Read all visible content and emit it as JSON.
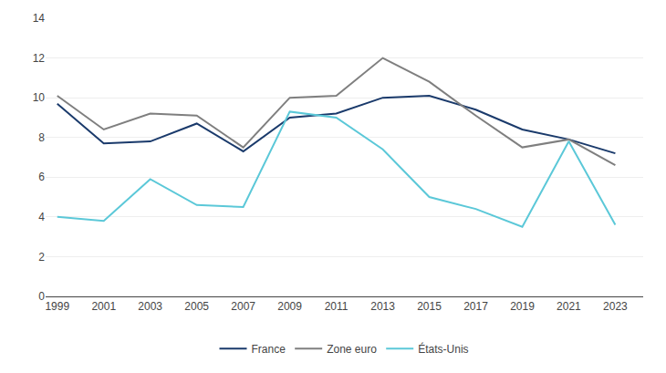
{
  "chart_data": {
    "type": "line",
    "x": [
      1999,
      2001,
      2003,
      2005,
      2007,
      2009,
      2011,
      2013,
      2015,
      2017,
      2019,
      2021,
      2023
    ],
    "series": [
      {
        "name": "France",
        "color": "#1a3a6b",
        "values": [
          9.7,
          7.7,
          7.8,
          8.7,
          7.3,
          9.0,
          9.2,
          10.0,
          10.1,
          9.4,
          8.4,
          7.9,
          7.2
        ]
      },
      {
        "name": "Zone euro",
        "color": "#7f7f7f",
        "values": [
          10.1,
          8.4,
          9.2,
          9.1,
          7.5,
          10.0,
          10.1,
          12.0,
          10.8,
          9.1,
          7.5,
          7.9,
          6.6
        ]
      },
      {
        "name": "États-Unis",
        "color": "#5bc8d8",
        "values": [
          4.0,
          3.8,
          5.9,
          4.6,
          4.5,
          9.3,
          9.0,
          7.4,
          5.0,
          4.4,
          3.5,
          7.8,
          3.6
        ]
      }
    ],
    "xlim": [
      1998.5,
      2024.2
    ],
    "xticks": [
      1999,
      2001,
      2003,
      2005,
      2007,
      2009,
      2011,
      2013,
      2015,
      2017,
      2019,
      2021,
      2023
    ],
    "ylim": [
      0,
      14
    ],
    "yticks": [
      0,
      2,
      4,
      6,
      8,
      10,
      12,
      14
    ],
    "grid": "y",
    "legend": "bottom"
  }
}
